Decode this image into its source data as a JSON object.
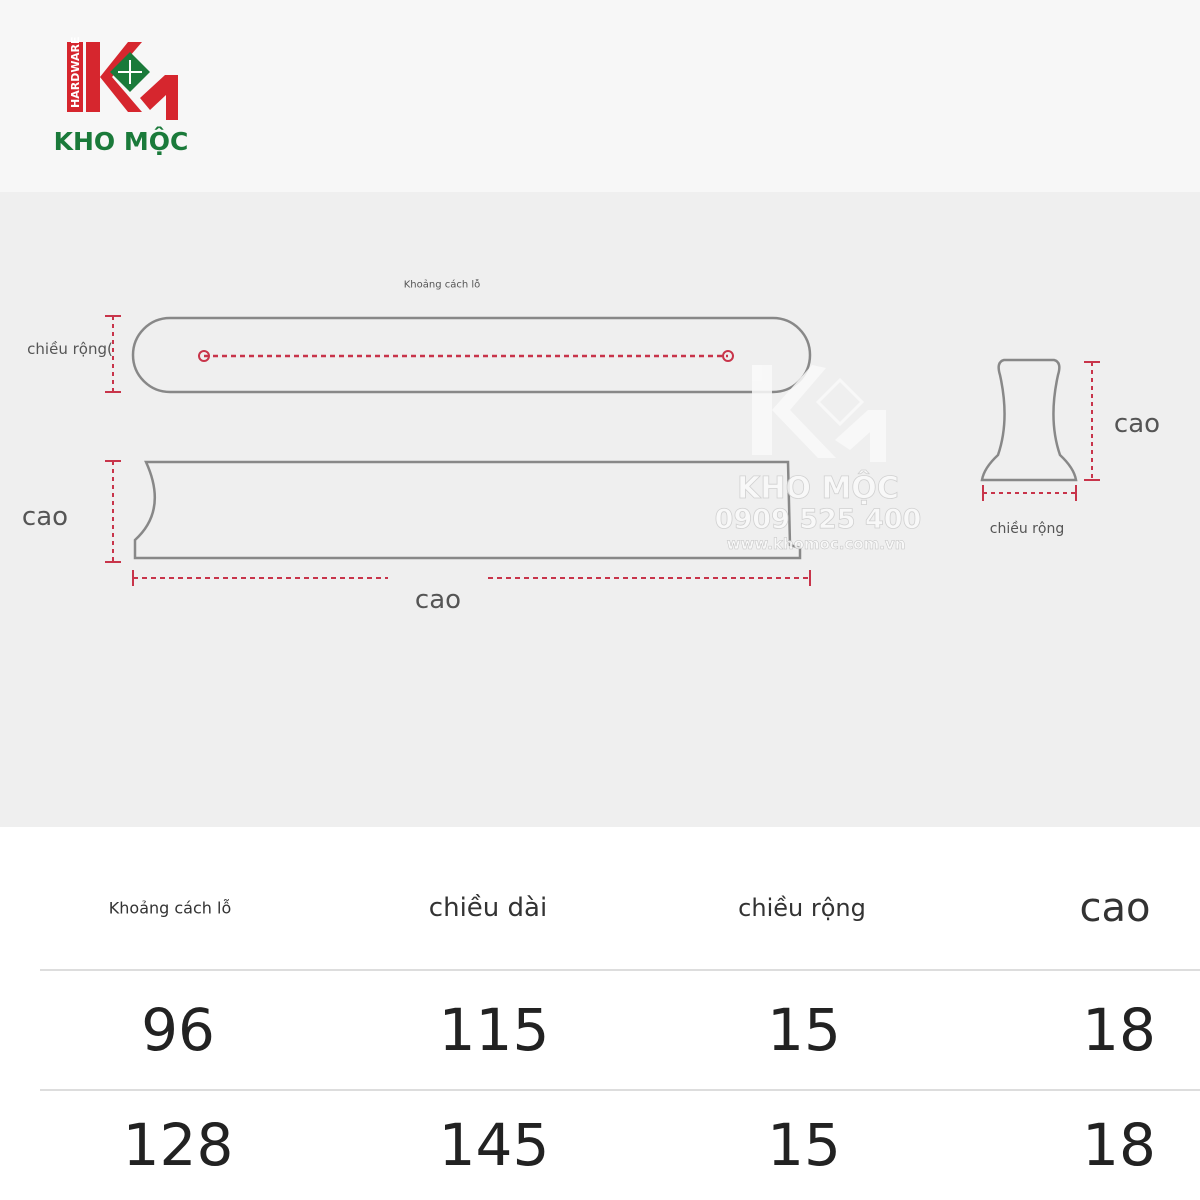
{
  "logo": {
    "brand": "KHO MỘC",
    "tagline": "HARDWARE",
    "colors": {
      "red": "#d6262e",
      "green": "#1a7a3a"
    }
  },
  "watermark": {
    "brand": "KHO MỘC",
    "phone": "0909 525 400",
    "website": "www.khomoc.com.vn"
  },
  "diagram": {
    "hole_spacing_label": "Khoảng cách lỗ",
    "top_width_label": "chiều rộng(",
    "side_height_label": "cao",
    "side_length_label": "cao",
    "end_height_label": "cao",
    "end_width_label": "chiều rộng",
    "dimension_color": "#c8344a"
  },
  "table": {
    "headers": [
      "Khoảng cách lỗ",
      "chiều dài",
      "chiều rộng",
      "cao"
    ],
    "rows": [
      [
        "96",
        "115",
        "15",
        "18"
      ],
      [
        "128",
        "145",
        "15",
        "18"
      ]
    ]
  }
}
